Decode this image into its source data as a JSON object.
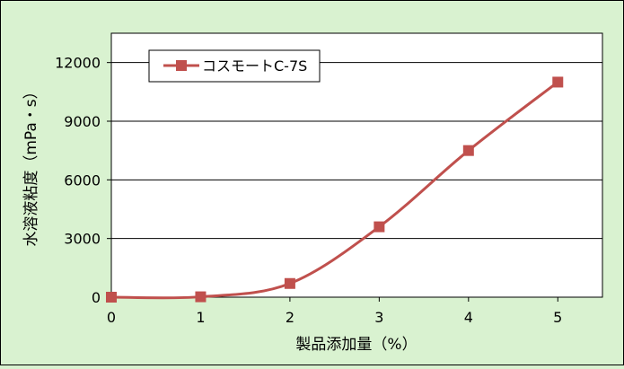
{
  "chart_data": {
    "type": "line",
    "title": "",
    "xlabel": "製品添加量（%）",
    "ylabel": "水溶液粘度（mPa・s）",
    "x": [
      0,
      1,
      2,
      3,
      4,
      5
    ],
    "series": [
      {
        "name": "コスモートC-7S",
        "values": [
          0,
          20,
          700,
          3600,
          7500,
          11000
        ]
      }
    ],
    "xlim": [
      0,
      5.5
    ],
    "ylim": [
      0,
      13500
    ],
    "xticks": [
      "0",
      "1",
      "2",
      "3",
      "4",
      "5"
    ],
    "yticks": [
      "0",
      "3000",
      "6000",
      "9000",
      "12000"
    ],
    "grid": "horizontal",
    "legend_position": "top-left",
    "colors": {
      "series": "#c0504d",
      "background": "#d9f2d0",
      "plot_area": "#ffffff"
    }
  }
}
